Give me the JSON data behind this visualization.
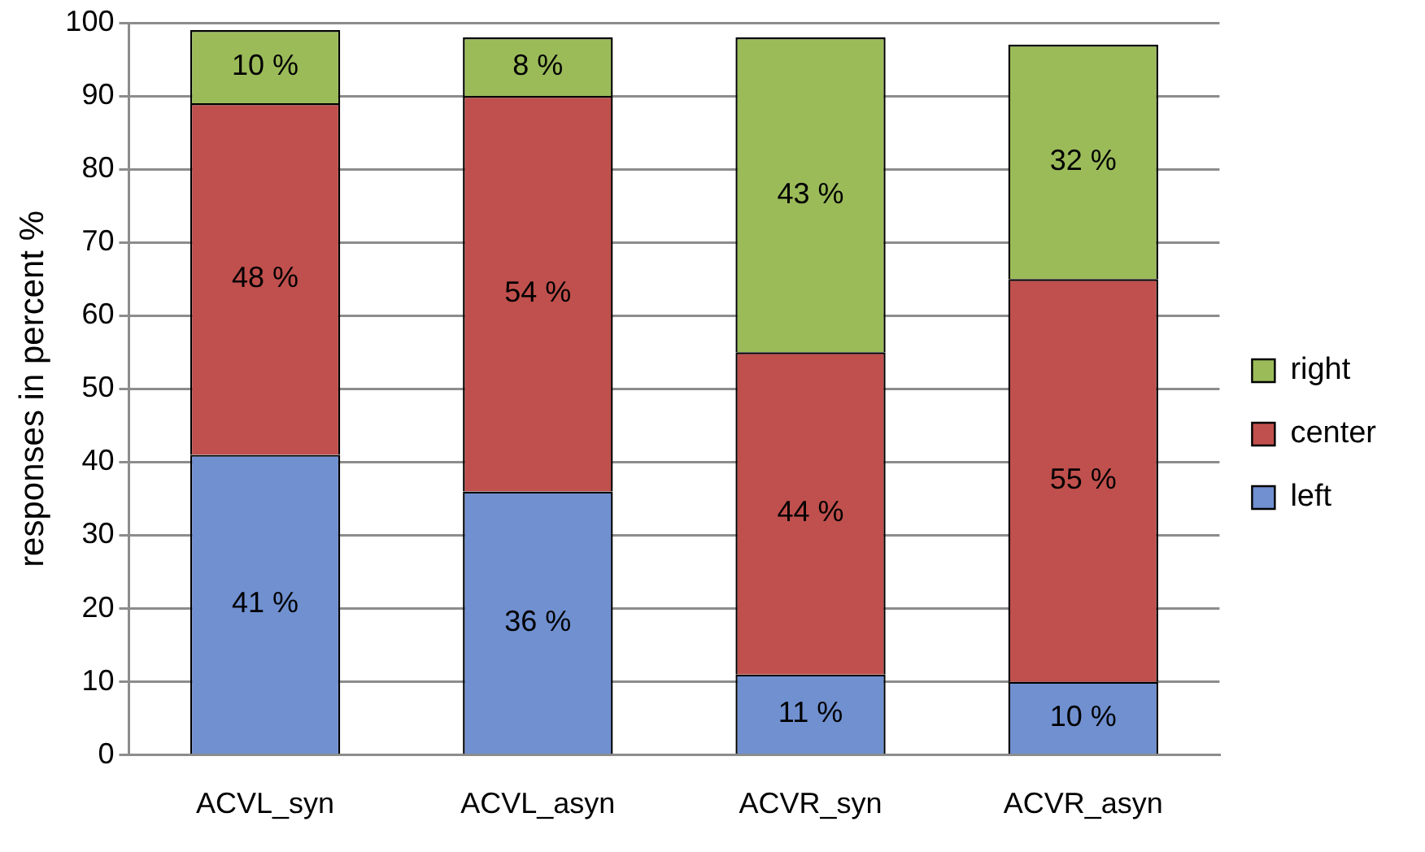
{
  "chart_data": {
    "type": "bar",
    "stacked": true,
    "ylabel": "responses in percent %",
    "categories": [
      "ACVL_syn",
      "ACVL_asyn",
      "ACVR_syn",
      "ACVR_asyn"
    ],
    "series": [
      {
        "name": "left",
        "color": "#7090d0",
        "values": [
          41,
          36,
          11,
          10
        ],
        "value_labels": [
          "41 %",
          "36 %",
          "11 %",
          "10 %"
        ]
      },
      {
        "name": "center",
        "color": "#c0504d",
        "values": [
          48,
          54,
          44,
          55
        ],
        "value_labels": [
          "48 %",
          "54 %",
          "44 %",
          "55 %"
        ]
      },
      {
        "name": "right",
        "color": "#9bbb59",
        "values": [
          10,
          8,
          43,
          32
        ],
        "value_labels": [
          "10 %",
          "8 %",
          "43 %",
          "32 %"
        ]
      }
    ],
    "ylim": [
      0,
      100
    ],
    "yticks": [
      0,
      10,
      20,
      30,
      40,
      50,
      60,
      70,
      80,
      90,
      100
    ],
    "grid": "y",
    "legend": "right"
  }
}
